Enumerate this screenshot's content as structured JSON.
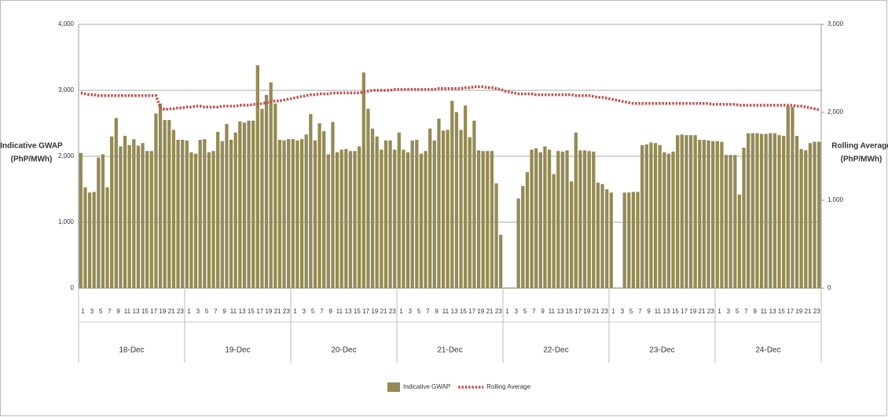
{
  "chart_data": {
    "type": "bar",
    "y_label": [
      "Indicative GWAP",
      "(PhP/MWh)"
    ],
    "y2_label": [
      "Rolling Average",
      "(PhP/MWh)"
    ],
    "categories": [
      "1",
      null,
      "3",
      null,
      "5",
      null,
      "7",
      null,
      "9",
      null,
      "11",
      null,
      "13",
      null,
      "15",
      null,
      "17",
      null,
      "19",
      null,
      "21",
      null,
      "23",
      null,
      "1",
      null,
      "3",
      null,
      "5",
      null,
      "7",
      null,
      "9",
      null,
      "11",
      null,
      "13",
      null,
      "15",
      null,
      "17",
      null,
      "19",
      null,
      "21",
      null,
      "23",
      null,
      "1",
      null,
      "3",
      null,
      "5",
      null,
      "7",
      null,
      "9",
      null,
      "11",
      null,
      "13",
      null,
      "15",
      null,
      "17",
      null,
      "19",
      null,
      "21",
      null,
      "23",
      null,
      "1",
      null,
      "3",
      null,
      "5",
      null,
      "7",
      null,
      "9",
      null,
      "11",
      null,
      "13",
      null,
      "15",
      null,
      "17",
      null,
      "19",
      null,
      "21",
      null,
      "23",
      null,
      "1",
      null,
      "3",
      null,
      "5",
      null,
      "7",
      null,
      "9",
      null,
      "11",
      null,
      "13",
      null,
      "15",
      null,
      "17",
      null,
      "19",
      null,
      "21",
      null,
      "23",
      null,
      "1",
      null,
      "3",
      null,
      "5",
      null,
      "7",
      null,
      "9",
      null,
      "11",
      null,
      "13",
      null,
      "15",
      null,
      "17",
      null,
      "19",
      null,
      "21",
      null,
      "23",
      null,
      "1",
      null,
      "3",
      null,
      "5",
      null,
      "7",
      null,
      "9",
      null,
      "11",
      null,
      "13",
      null,
      "15",
      null,
      "17",
      null,
      "19",
      null,
      "21",
      null,
      "23",
      null
    ],
    "groups": [
      "18-Dec",
      "19-Dec",
      "20-Dec",
      "21-Dec",
      "22-Dec",
      "23-Dec",
      "24-Dec"
    ],
    "series": [
      {
        "name": "Indicative GWAP",
        "type": "bar",
        "color": "#948a54",
        "values": [
          2050,
          1530,
          1450,
          1460,
          1980,
          2030,
          1530,
          2300,
          2580,
          2150,
          2310,
          2170,
          2260,
          2160,
          2200,
          2080,
          2080,
          2650,
          2800,
          2550,
          2550,
          2400,
          2250,
          2250,
          2240,
          2060,
          2040,
          2250,
          2260,
          2060,
          2080,
          2370,
          2230,
          2490,
          2250,
          2360,
          2530,
          2510,
          2540,
          2540,
          3380,
          2720,
          2930,
          3120,
          2800,
          2250,
          2240,
          2260,
          2260,
          2240,
          2260,
          2330,
          2640,
          2240,
          2500,
          2380,
          2030,
          2520,
          2060,
          2100,
          2110,
          2080,
          2080,
          2150,
          3270,
          2720,
          2420,
          2300,
          2100,
          2240,
          2240,
          2100,
          2360,
          2100,
          2060,
          2240,
          2250,
          2040,
          2080,
          2420,
          2240,
          2570,
          2390,
          2400,
          2840,
          2670,
          2400,
          2770,
          2290,
          2540,
          2090,
          2080,
          2080,
          2080,
          1590,
          810,
          10,
          10,
          10,
          1360,
          1550,
          1760,
          2100,
          2120,
          2060,
          2150,
          2100,
          1730,
          2080,
          2070,
          2090,
          1620,
          2360,
          2090,
          2090,
          2080,
          2070,
          1600,
          1580,
          1500,
          1450,
          10,
          10,
          1450,
          1450,
          1460,
          1460,
          2170,
          2180,
          2210,
          2200,
          2170,
          2060,
          2040,
          2070,
          2320,
          2330,
          2320,
          2320,
          2320,
          2250,
          2250,
          2240,
          2230,
          2230,
          2220,
          2020,
          2020,
          2020,
          1420,
          2130,
          2350,
          2350,
          2350,
          2340,
          2340,
          2350,
          2350,
          2320,
          2310,
          2760,
          2750,
          2310,
          2110,
          2090,
          2200,
          2220,
          2220
        ]
      },
      {
        "name": "Rolling Average",
        "type": "line",
        "axis": "y2",
        "color": "#c0504d",
        "values": [
          2220,
          2210,
          2200,
          2200,
          2190,
          2190,
          2190,
          2190,
          2190,
          2190,
          2190,
          2190,
          2190,
          2190,
          2190,
          2190,
          2190,
          2190,
          2050,
          2030,
          2040,
          2040,
          2050,
          2050,
          2060,
          2060,
          2070,
          2070,
          2060,
          2060,
          2060,
          2060,
          2070,
          2070,
          2070,
          2070,
          2080,
          2080,
          2080,
          2090,
          2090,
          2100,
          2110,
          2120,
          2130,
          2130,
          2140,
          2150,
          2160,
          2170,
          2180,
          2190,
          2200,
          2200,
          2210,
          2210,
          2210,
          2220,
          2220,
          2220,
          2220,
          2220,
          2220,
          2220,
          2230,
          2240,
          2250,
          2250,
          2250,
          2250,
          2250,
          2260,
          2260,
          2260,
          2260,
          2260,
          2260,
          2260,
          2260,
          2260,
          2260,
          2270,
          2270,
          2270,
          2270,
          2270,
          2270,
          2280,
          2280,
          2290,
          2290,
          2290,
          2280,
          2280,
          2270,
          2260,
          2240,
          2230,
          2220,
          2210,
          2210,
          2210,
          2210,
          2200,
          2200,
          2200,
          2200,
          2200,
          2200,
          2200,
          2200,
          2200,
          2190,
          2190,
          2190,
          2190,
          2180,
          2170,
          2170,
          2160,
          2150,
          2140,
          2130,
          2120,
          2110,
          2100,
          2100,
          2100,
          2100,
          2100,
          2100,
          2100,
          2100,
          2100,
          2100,
          2100,
          2100,
          2100,
          2100,
          2100,
          2100,
          2100,
          2100,
          2090,
          2090,
          2090,
          2090,
          2090,
          2090,
          2080,
          2080,
          2080,
          2080,
          2080,
          2080,
          2080,
          2080,
          2080,
          2080,
          2080,
          2080,
          2080,
          2070,
          2070,
          2060,
          2050,
          2040,
          2030
        ]
      }
    ],
    "ylim": [
      0,
      4000
    ],
    "yticks": [
      0,
      {
        "value": 1000,
        "label": "1,000"
      },
      {
        "value": 2000,
        "label": "2,000"
      },
      {
        "value": 3000,
        "label": "3,000"
      },
      {
        "value": 4000,
        "label": "4,000"
      }
    ],
    "y2lim": [
      0,
      3000
    ],
    "y2ticks": [
      0,
      {
        "value": 1000,
        "label": "1,000"
      },
      {
        "value": 2000,
        "label": "2,000"
      },
      {
        "value": 3000,
        "label": "3,000"
      }
    ],
    "grid": true,
    "legend": "bottom"
  }
}
